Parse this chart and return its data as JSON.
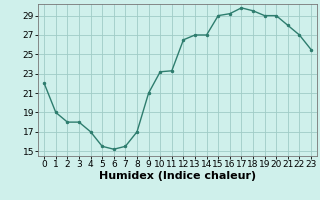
{
  "x": [
    0,
    1,
    2,
    3,
    4,
    5,
    6,
    7,
    8,
    9,
    10,
    11,
    12,
    13,
    14,
    15,
    16,
    17,
    18,
    19,
    20,
    21,
    22,
    23
  ],
  "y": [
    22,
    19,
    18,
    18,
    17,
    15.5,
    15.2,
    15.5,
    17,
    21,
    23.2,
    23.3,
    26.5,
    27,
    27,
    29.0,
    29.2,
    29.8,
    29.5,
    29.0,
    29.0,
    28.0,
    27.0,
    25.5
  ],
  "line_color": "#2e7d6e",
  "marker_color": "#2e7d6e",
  "bg_color": "#cff0eb",
  "grid_color": "#a0ccc6",
  "xlabel": "Humidex (Indice chaleur)",
  "ylim": [
    14.5,
    30.2
  ],
  "yticks": [
    15,
    17,
    19,
    21,
    23,
    25,
    27,
    29
  ],
  "xticks": [
    0,
    1,
    2,
    3,
    4,
    5,
    6,
    7,
    8,
    9,
    10,
    11,
    12,
    13,
    14,
    15,
    16,
    17,
    18,
    19,
    20,
    21,
    22,
    23
  ],
  "tick_fontsize": 6.5,
  "label_fontsize": 8
}
